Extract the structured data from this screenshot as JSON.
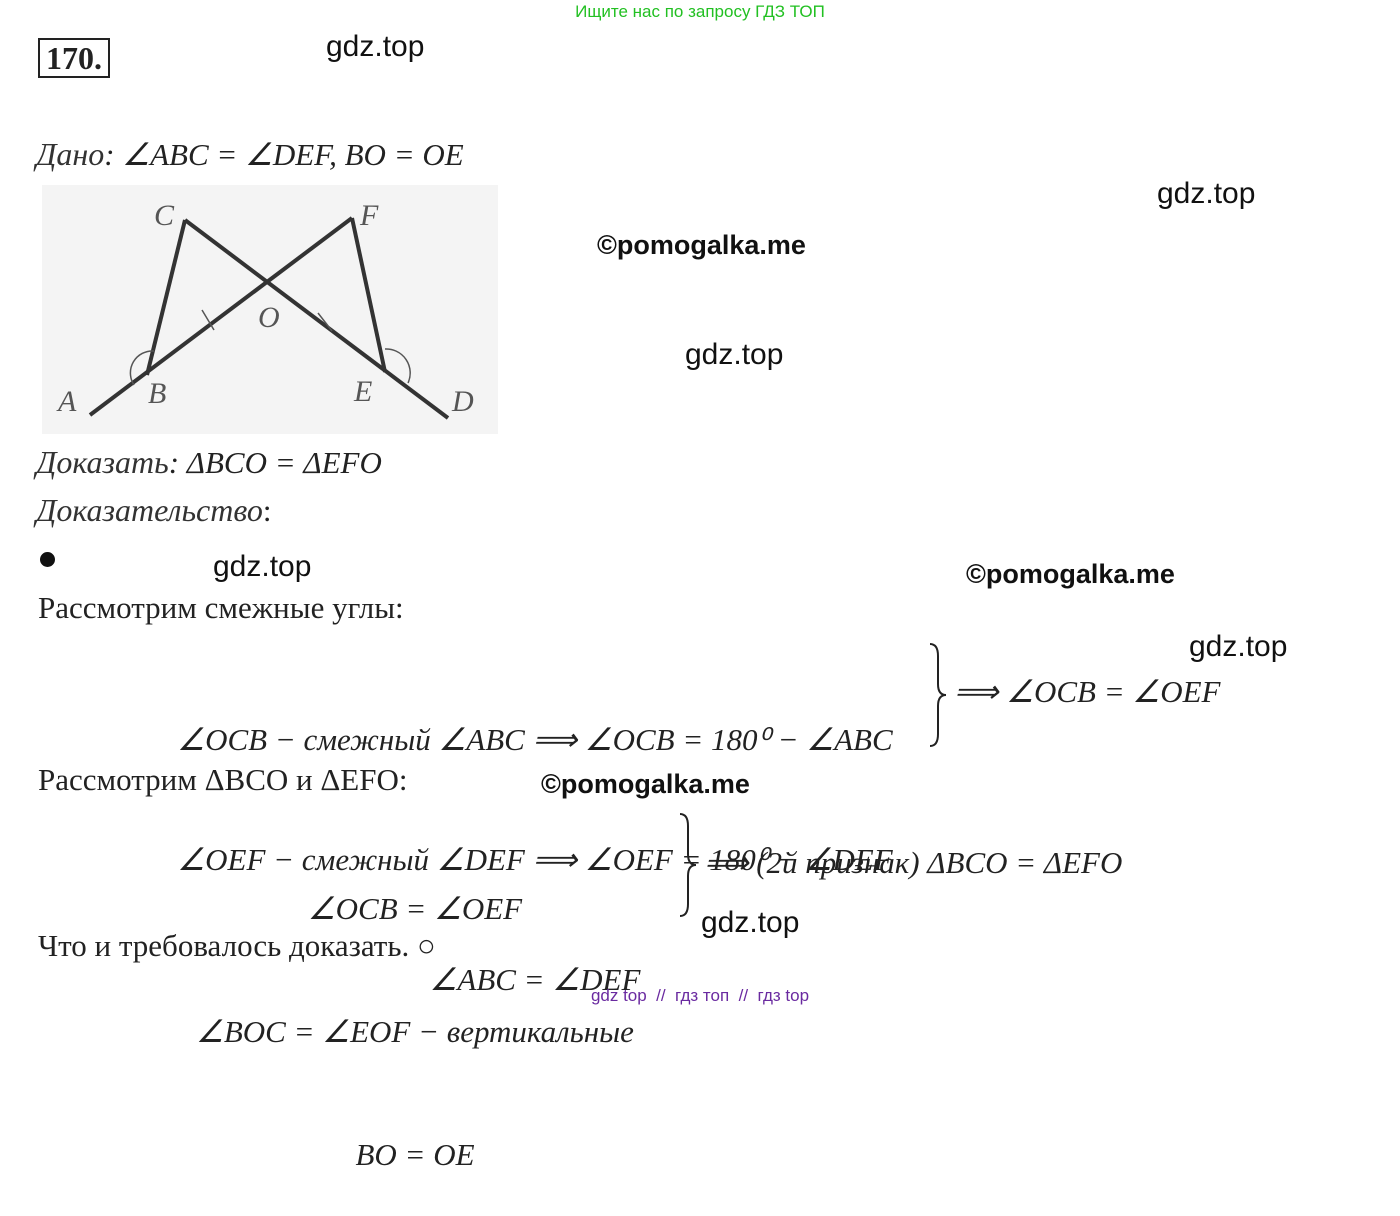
{
  "header": {
    "banner": "Ищите нас по запросу ГДЗ ТОП",
    "number": "170."
  },
  "watermarks": [
    "gdz.top",
    "gdz.top",
    "©pomogalka.me",
    "gdz.top",
    "gdz.top",
    "©pomogalka.me",
    "gdz.top",
    "©pomogalka.me",
    "gdz.top"
  ],
  "given": {
    "label": "Дано",
    "text": ": ∠ABC = ∠DEF, BO = OE"
  },
  "figure": {
    "labels": [
      "C",
      "F",
      "O",
      "A",
      "B",
      "E",
      "D"
    ]
  },
  "prove": {
    "label": "Доказать",
    "text": ": ΔBCO = ΔEFO"
  },
  "proof": {
    "label": "Доказательство",
    "colon": ":",
    "steps": [
      {
        "intro": "Рассмотрим смежные углы:",
        "lines": [
          "∠OCB − смежный ∠ABC ⟹ ∠OCB = 180⁰ − ∠ABC",
          "∠OEF − смежный ∠DEF ⟹ ∠OEF = 180⁰ − ∠DEF",
          "∠ABC = ∠DEF"
        ],
        "conclusion": "⟹ ∠OCB = ∠OEF"
      },
      {
        "intro": "Рассмотрим ΔBCO и ΔEFO:",
        "lines": [
          "∠OCB = ∠OEF",
          "∠BOC = ∠EOF − вертикальные",
          "BO = OE"
        ],
        "conclusion": "⟹ (2й признак) ΔBCO = ΔEFO"
      }
    ],
    "end": "Что и требовалось доказать. ○"
  },
  "footer": "gdz top  //  гдз топ  //  гдз top"
}
